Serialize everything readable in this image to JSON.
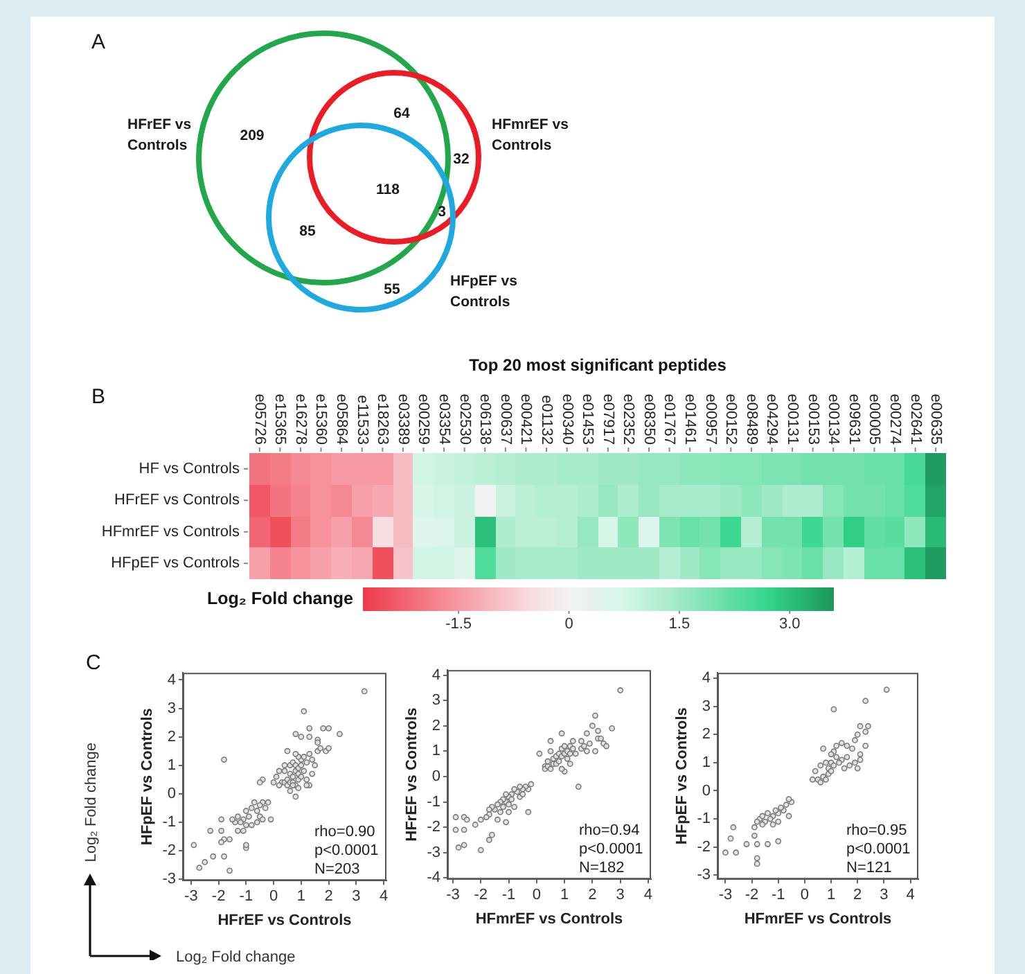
{
  "chart_data": [
    {
      "type": "other",
      "annotations": [
        "A",
        "209",
        "64",
        "32",
        "118",
        "3",
        "85",
        "55"
      ],
      "categories": [
        "HFrEF vs Controls",
        "HFmrEF vs Controls",
        "HFpEF vs Controls"
      ],
      "colors": [
        "#22a84a",
        "#ec1c24",
        "#1fa9e1"
      ]
    },
    {
      "type": "heatmap",
      "title": "Top 20 most significant peptides",
      "annotations": [
        "B"
      ],
      "categories": [
        "e05726",
        "e15365",
        "e16278",
        "e15360",
        "e05864",
        "e11533",
        "e18263",
        "e03389",
        "e00259",
        "e03354",
        "e02530",
        "e06138",
        "e00637",
        "e00421",
        "e01132",
        "e00340",
        "e01453",
        "e07917",
        "e02352",
        "e08350",
        "e01767",
        "e01461",
        "e00957",
        "e00152",
        "e08489",
        "e04294",
        "e00131",
        "e00153",
        "e00134",
        "e09631",
        "e00005",
        "e00274",
        "e02641",
        "e00635"
      ],
      "y_categories": [
        "HF vs Controls",
        "HFrEF vs Controls",
        "HFmrEF vs Controls",
        "HFpEF vs Controls"
      ],
      "cells": [
        [
          -2.0,
          -1.9,
          -1.7,
          -1.6,
          -1.5,
          -1.5,
          -1.5,
          -1.0,
          0.8,
          0.9,
          1.0,
          1.1,
          1.2,
          1.3,
          1.3,
          1.4,
          1.4,
          1.5,
          1.5,
          1.6,
          1.6,
          1.7,
          1.7,
          1.8,
          1.8,
          1.9,
          1.9,
          2.0,
          2.0,
          2.0,
          2.1,
          2.1,
          2.5,
          3.5
        ],
        [
          -2.4,
          -2.0,
          -1.8,
          -1.6,
          -1.7,
          -1.4,
          -1.3,
          -1.0,
          0.7,
          0.8,
          0.9,
          0.0,
          0.9,
          1.1,
          1.2,
          1.2,
          1.3,
          1.6,
          1.3,
          1.6,
          1.4,
          1.4,
          1.4,
          1.5,
          1.7,
          1.5,
          1.3,
          1.3,
          1.8,
          2.0,
          2.0,
          2.1,
          2.4,
          3.4
        ],
        [
          -2.2,
          -2.5,
          -1.9,
          -1.6,
          -1.4,
          -1.7,
          -0.5,
          -1.0,
          0.5,
          0.6,
          0.9,
          3.0,
          1.3,
          1.1,
          1.1,
          1.2,
          1.6,
          0.7,
          1.7,
          0.6,
          1.9,
          2.1,
          2.0,
          2.6,
          1.2,
          2.0,
          2.0,
          2.6,
          2.0,
          2.8,
          2.2,
          2.3,
          1.7,
          3.1
        ],
        [
          -1.4,
          -1.8,
          -1.6,
          -1.4,
          -1.2,
          -1.3,
          -2.5,
          -0.9,
          0.8,
          0.8,
          0.5,
          2.4,
          1.5,
          1.4,
          1.4,
          1.4,
          1.5,
          1.5,
          1.5,
          1.5,
          1.2,
          1.5,
          1.8,
          1.6,
          1.6,
          1.8,
          1.9,
          2.1,
          1.6,
          1.2,
          2.1,
          2.1,
          3.0,
          3.5
        ]
      ],
      "clabel": "Log₂ Fold change",
      "clim": [
        -2.8,
        3.6
      ],
      "cticks": [
        -1.5,
        0,
        1.5,
        {
          "value": 3,
          "label": "3.0"
        }
      ]
    },
    {
      "type": "other",
      "annotations": [
        "C"
      ],
      "xlabel": "Log₂ Fold change",
      "ylabel": "Log₂ Fold change"
    },
    {
      "type": "scatter",
      "xlabel": "HFrEF vs Controls",
      "ylabel": "HFpEF vs Controls",
      "xlim": [
        -3.3,
        4.1
      ],
      "ylim": [
        -3.05,
        4.25
      ],
      "xticks": [
        -3,
        -2,
        -1,
        0,
        1,
        2,
        3,
        4
      ],
      "yticks": [
        -3,
        -2,
        -1,
        0,
        1,
        2,
        3,
        4
      ],
      "marker": "circle",
      "annotations": [
        "rho=0.90",
        "p<0.0001",
        "N=203"
      ],
      "series": [
        {
          "color": "#7a7a7a",
          "x": [
            0.3,
            0.4,
            0.5,
            0.5,
            0.6,
            0.7,
            0.8,
            0.6,
            0.7,
            0.8,
            0.9,
            0.9,
            1.0,
            0.6,
            0.7,
            0.8,
            0.9,
            1.0,
            1.1,
            1.0,
            1.1,
            1.2,
            0.9,
            0.8,
            1.3,
            1.4,
            1.5,
            1.2,
            1.3,
            1.6,
            1.6,
            1.3,
            1.1,
            0.8,
            1.0,
            1.8,
            2.0,
            2.4,
            1.7,
            1.9,
            2.0,
            1.6,
            1.3,
            3.3,
            0.5,
            0.4,
            0.2,
            0.0,
            0.1,
            0.6,
            0.8,
            1.4,
            0.4,
            0.2,
            1.2,
            0.7,
            0.9,
            -0.1,
            -0.4,
            -0.5,
            -0.4,
            -0.5,
            -0.3,
            -0.6,
            -0.7,
            -0.8,
            -0.5,
            -0.9,
            -1.0,
            -1.1,
            -1.2,
            -1.0,
            -1.3,
            -1.4,
            -1.5,
            -1.1,
            -0.8,
            -1.3,
            -0.6,
            -0.2,
            -0.4,
            -1.0,
            -1.0,
            -1.8,
            -1.9,
            -1.9,
            -2.3,
            -1.8,
            -1.6,
            -1.9,
            -2.9,
            -2.2,
            -1.8,
            -1.6,
            -2.5,
            -2.7
          ],
          "values": [
            0.4,
            0.4,
            0.3,
            0.5,
            0.4,
            0.4,
            0.3,
            0.7,
            0.6,
            0.8,
            0.7,
            0.5,
            0.6,
            1.0,
            1.1,
            1.0,
            0.9,
            1.0,
            0.8,
            1.2,
            1.3,
            1.1,
            1.3,
            1.4,
            1.4,
            1.2,
            1.0,
            0.5,
            0.3,
            1.5,
            1.9,
            2.3,
            2.9,
            2.1,
            2.0,
            2.3,
            2.3,
            2.1,
            1.6,
            1.5,
            1.6,
            1.8,
            2.0,
            3.6,
            1.5,
            1.0,
            0.3,
            0.4,
            0.6,
            0.1,
            -0.1,
            0.7,
            0.8,
            0.8,
            0.3,
            0.3,
            0.2,
            -0.9,
            0.5,
            0.4,
            -0.3,
            -0.4,
            -0.5,
            -0.6,
            -0.3,
            -0.5,
            -0.8,
            -0.8,
            -0.6,
            -0.9,
            -1.0,
            -1.1,
            -0.8,
            -1.0,
            -0.9,
            -1.3,
            -1.1,
            -1.3,
            -1.0,
            -0.3,
            -0.9,
            -1.9,
            -1.8,
            1.2,
            -0.9,
            -1.3,
            -1.3,
            -1.6,
            -1.6,
            -1.7,
            -1.8,
            -2.2,
            -2.2,
            -2.7,
            -2.4,
            -2.6
          ]
        }
      ]
    },
    {
      "type": "scatter",
      "xlabel": "HFmrEF vs Controls",
      "ylabel": "HFrEF vs Controls",
      "xlim": [
        -3.2,
        4.1
      ],
      "ylim": [
        -4.05,
        4.2
      ],
      "xticks": [
        -3,
        -2,
        -1,
        0,
        1,
        2,
        3,
        4
      ],
      "yticks": [
        -4,
        -3,
        -2,
        -1,
        0,
        1,
        2,
        3,
        4
      ],
      "marker": "circle",
      "annotations": [
        "rho=0.94",
        "p<0.0001",
        "N=182"
      ],
      "series": [
        {
          "color": "#7a7a7a",
          "x": [
            3.0,
            2.1,
            2.7,
            2.0,
            1.8,
            2.2,
            0.9,
            0.5,
            1.3,
            1.6,
            2.4,
            2.1,
            0.1,
            0.3,
            1.0,
            1.5,
            0.3,
            0.4,
            0.5,
            0.6,
            0.7,
            0.8,
            0.6,
            0.7,
            0.8,
            0.9,
            1.0,
            1.1,
            1.1,
            1.2,
            0.9,
            1.0,
            1.2,
            1.3,
            1.4,
            1.6,
            1.7,
            1.8,
            1.9,
            2.2,
            2.3,
            2.5,
            1.2,
            0.9,
            0.4,
            0.5,
            -0.3,
            -0.2,
            -0.4,
            -0.5,
            -0.6,
            -0.7,
            -0.8,
            -0.9,
            -1.0,
            -1.1,
            -1.1,
            -1.2,
            -1.3,
            -0.9,
            -1.0,
            -1.2,
            -1.4,
            -1.5,
            -1.6,
            -1.7,
            -1.3,
            -0.6,
            -0.5,
            -0.8,
            -1.0,
            -1.7,
            -1.8,
            -1.4,
            -1.1,
            -0.3,
            -2.0,
            -2.9,
            -2.6,
            -2.5,
            -2.9,
            -2.6,
            -2.2,
            -2.8,
            -2.6,
            -2.0,
            -1.6,
            -1.7
          ],
          "values": [
            3.4,
            2.4,
            1.9,
            2.0,
            1.7,
            1.8,
            1.7,
            1.4,
            1.4,
            1.4,
            1.3,
            1.0,
            0.9,
            0.4,
            0.2,
            -0.4,
            0.3,
            0.4,
            0.3,
            0.5,
            0.5,
            0.6,
            0.7,
            0.8,
            0.9,
            0.8,
            0.9,
            0.7,
            1.0,
            0.9,
            1.1,
            1.2,
            1.2,
            1.1,
            0.9,
            1.1,
            1.2,
            1.0,
            1.3,
            1.5,
            1.5,
            1.2,
            0.5,
            0.3,
            0.6,
            1.0,
            -0.5,
            -0.3,
            -0.4,
            -0.5,
            -0.4,
            -0.6,
            -0.5,
            -0.7,
            -0.8,
            -0.7,
            -1.0,
            -0.9,
            -1.0,
            -0.9,
            -1.1,
            -1.2,
            -1.1,
            -1.3,
            -1.2,
            -1.5,
            -1.4,
            -0.8,
            -0.7,
            -1.2,
            -1.4,
            -1.3,
            -1.6,
            -1.7,
            -1.8,
            -1.4,
            -1.7,
            -1.6,
            -1.6,
            -1.7,
            -2.1,
            -2.1,
            -1.9,
            -2.8,
            -2.7,
            -2.9,
            -2.3,
            -2.5
          ]
        }
      ]
    },
    {
      "type": "scatter",
      "xlabel": "HFmrEF vs Controls",
      "ylabel": "HFpEF vs Controls",
      "xlim": [
        -3.3,
        4.3
      ],
      "ylim": [
        -3.15,
        4.2
      ],
      "xticks": [
        -3,
        -2,
        -1,
        0,
        1,
        2,
        3,
        4
      ],
      "yticks": [
        -3,
        -2,
        -1,
        0,
        1,
        2,
        3,
        4
      ],
      "marker": "circle",
      "annotations": [
        "rho=0.95",
        "p<0.0001",
        "N=121"
      ],
      "series": [
        {
          "color": "#7a7a7a",
          "x": [
            3.1,
            2.3,
            1.1,
            2.4,
            2.1,
            2.3,
            2.0,
            1.9,
            2.0,
            1.1,
            1.4,
            1.6,
            0.7,
            1.8,
            2.3,
            2.1,
            1.6,
            1.4,
            1.2,
            1.0,
            0.9,
            1.1,
            1.3,
            0.8,
            0.6,
            0.4,
            0.3,
            0.5,
            0.7,
            0.9,
            1.0,
            1.5,
            1.7,
            1.9,
            2.1,
            0.6,
            0.8,
            1.0,
            1.2,
            -0.5,
            -0.6,
            -0.7,
            -0.8,
            -0.9,
            -1.0,
            -1.1,
            -1.2,
            -1.3,
            -1.4,
            -1.5,
            -1.6,
            -1.7,
            -1.8,
            -1.9,
            -1.2,
            -1.0,
            -0.6,
            -1.6,
            -3.0,
            -2.8,
            -2.7,
            -2.6,
            -2.2,
            -1.9,
            -1.8,
            -1.8,
            -1.8,
            -1.4,
            -1.0
          ],
          "values": [
            3.6,
            3.2,
            2.9,
            2.3,
            2.3,
            2.1,
            2.0,
            1.8,
            0.8,
            1.4,
            1.7,
            1.6,
            1.5,
            1.5,
            1.6,
            1.3,
            1.2,
            1.1,
            1.2,
            1.0,
            0.8,
            0.9,
            1.0,
            1.0,
            0.9,
            0.7,
            0.4,
            0.4,
            0.5,
            0.6,
            0.7,
            0.8,
            0.9,
            1.0,
            1.1,
            0.3,
            0.4,
            1.3,
            1.6,
            -0.4,
            -0.3,
            -0.5,
            -0.7,
            -0.6,
            -0.8,
            -0.7,
            -0.9,
            -1.0,
            -0.8,
            -1.1,
            -1.2,
            -1.0,
            -1.1,
            -1.3,
            -1.2,
            -1.1,
            -0.9,
            -0.9,
            -2.2,
            -1.7,
            -1.3,
            -2.2,
            -1.9,
            -1.6,
            -1.9,
            -2.4,
            -2.6,
            -1.9,
            -1.8
          ]
        }
      ]
    }
  ]
}
